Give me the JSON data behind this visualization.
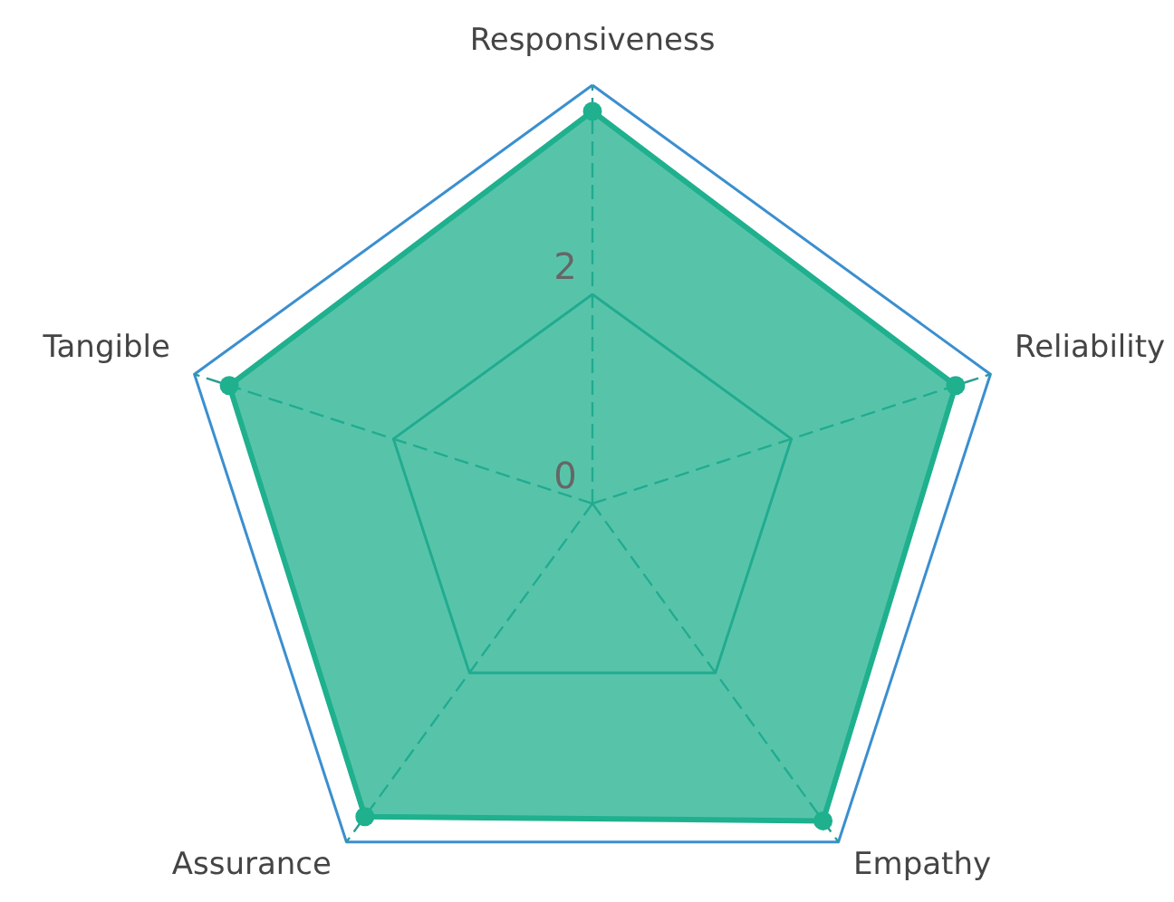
{
  "chart_data": {
    "type": "radar",
    "categories": [
      "Responsiveness",
      "Reliability",
      "Empathy",
      "Assurance",
      "Tangible"
    ],
    "series": [
      {
        "color": "#1fb08e",
        "values": [
          3.75,
          3.65,
          3.75,
          3.7,
          3.65
        ]
      }
    ],
    "ylim": [
      0,
      4
    ],
    "yticks": [
      0,
      2
    ],
    "grid": true,
    "marker": "circle"
  }
}
